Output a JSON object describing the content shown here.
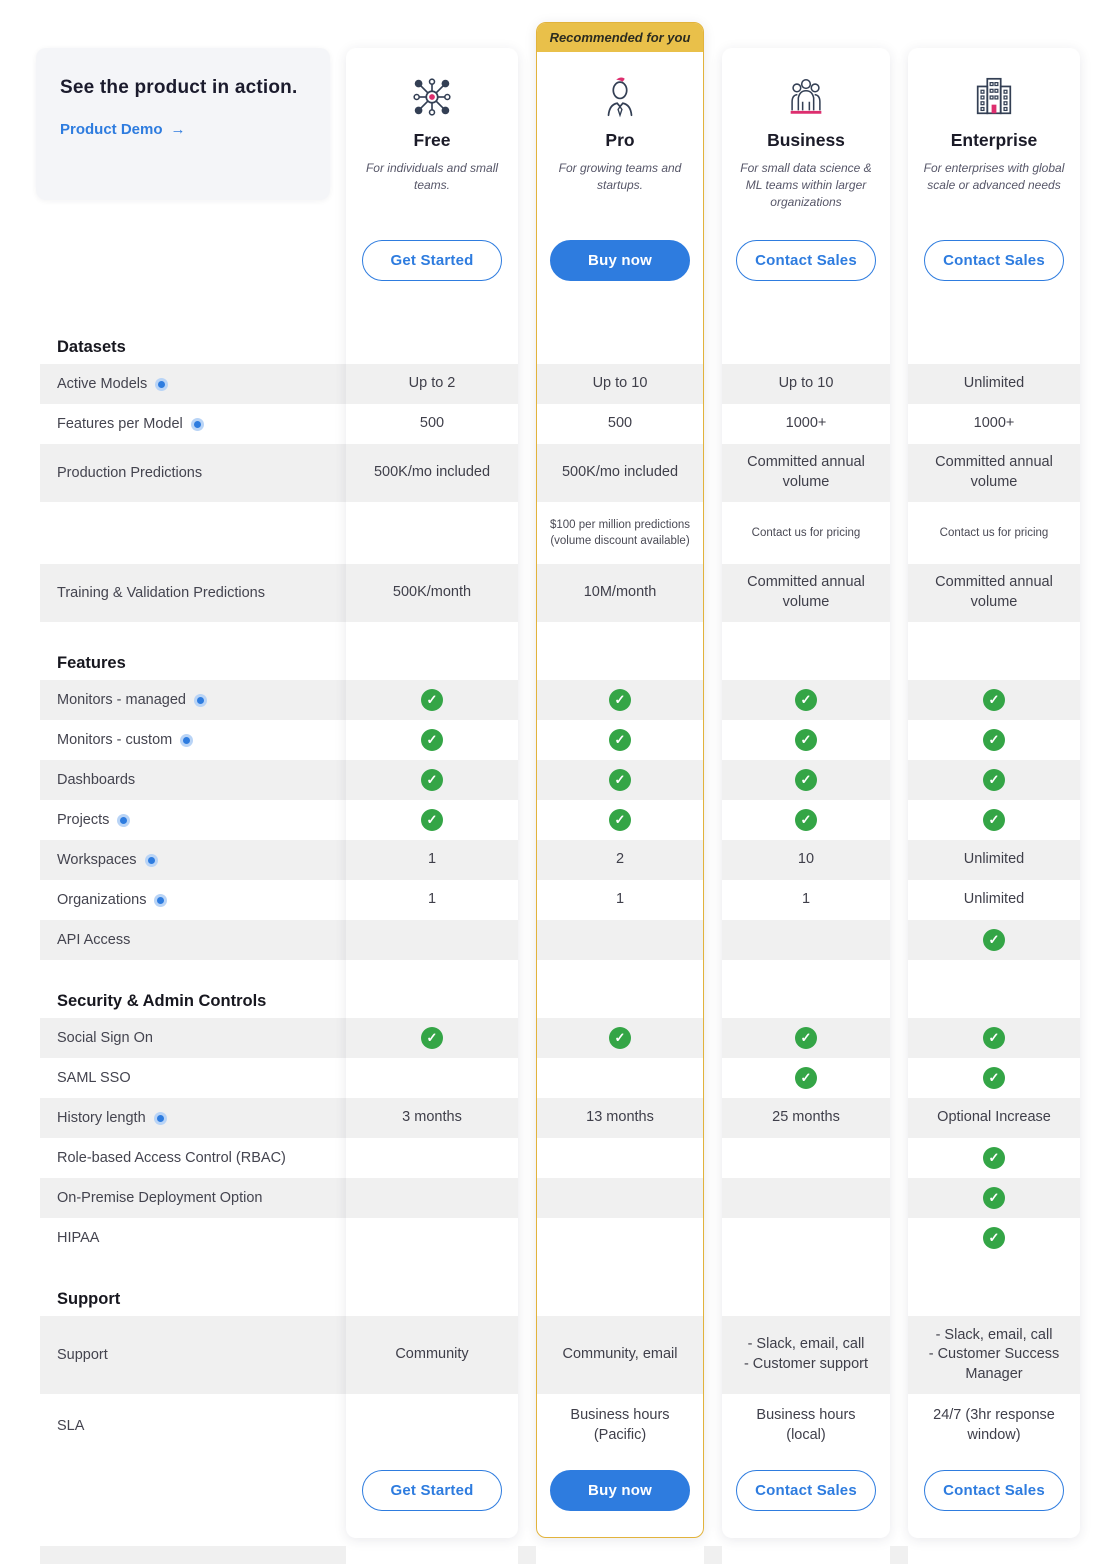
{
  "demo_card": {
    "title": "See the product in action.",
    "link_label": "Product Demo",
    "arrow": "→"
  },
  "badge": "Recommended for you",
  "plans": [
    {
      "name": "Free",
      "tagline": "For individuals and small teams.",
      "icon": "network-icon",
      "cta": "Get Started",
      "cta_style": "outline",
      "recommended": false
    },
    {
      "name": "Pro",
      "tagline": "For growing teams and startups.",
      "icon": "person-icon",
      "cta": "Buy now",
      "cta_style": "filled",
      "recommended": true
    },
    {
      "name": "Business",
      "tagline": "For small data science & ML teams within larger organizations",
      "icon": "people-group-icon",
      "cta": "Contact Sales",
      "cta_style": "outline",
      "recommended": false
    },
    {
      "name": "Enterprise",
      "tagline": "For enterprises with global scale or advanced needs",
      "icon": "buildings-icon",
      "cta": "Contact Sales",
      "cta_style": "outline",
      "recommended": false
    }
  ],
  "sections": [
    {
      "heading": "Datasets",
      "rows": [
        {
          "label": "Active Models",
          "info": true,
          "shade": true,
          "size": "normal",
          "cells": [
            "Up to 2",
            "Up to 10",
            "Up to 10",
            "Unlimited"
          ]
        },
        {
          "label": "Features per Model",
          "info": true,
          "shade": false,
          "size": "normal",
          "cells": [
            "500",
            "500",
            "1000+",
            "1000+"
          ]
        },
        {
          "label": "Production Predictions",
          "info": false,
          "shade": true,
          "size": "tall",
          "cells": [
            "500K/mo included",
            "500K/mo included",
            "Committed annual volume",
            "Committed annual volume"
          ]
        },
        {
          "label": "",
          "info": false,
          "shade": false,
          "size": "sub",
          "cells": [
            "",
            "$100 per million predictions (volume discount available)",
            "Contact us for pricing",
            "Contact us for pricing"
          ]
        },
        {
          "label": "Training & Validation Predictions",
          "info": false,
          "shade": true,
          "size": "tall",
          "cells": [
            "500K/month",
            "10M/month",
            "Committed annual volume",
            "Committed annual volume"
          ]
        }
      ]
    },
    {
      "heading": "Features",
      "rows": [
        {
          "label": "Monitors - managed",
          "info": true,
          "shade": true,
          "size": "normal",
          "cells": [
            "check",
            "check",
            "check",
            "check"
          ]
        },
        {
          "label": "Monitors - custom",
          "info": true,
          "shade": false,
          "size": "normal",
          "cells": [
            "check",
            "check",
            "check",
            "check"
          ]
        },
        {
          "label": "Dashboards",
          "info": false,
          "shade": true,
          "size": "normal",
          "cells": [
            "check",
            "check",
            "check",
            "check"
          ]
        },
        {
          "label": "Projects",
          "info": true,
          "shade": false,
          "size": "normal",
          "cells": [
            "check",
            "check",
            "check",
            "check"
          ]
        },
        {
          "label": "Workspaces",
          "info": true,
          "shade": true,
          "size": "normal",
          "cells": [
            "1",
            "2",
            "10",
            "Unlimited"
          ]
        },
        {
          "label": "Organizations",
          "info": true,
          "shade": false,
          "size": "normal",
          "cells": [
            "1",
            "1",
            "1",
            "Unlimited"
          ]
        },
        {
          "label": "API Access",
          "info": false,
          "shade": true,
          "size": "normal",
          "cells": [
            "",
            "",
            "",
            "check"
          ]
        }
      ]
    },
    {
      "heading": "Security & Admin Controls",
      "rows": [
        {
          "label": "Social Sign On",
          "info": false,
          "shade": true,
          "size": "normal",
          "cells": [
            "check",
            "check",
            "check",
            "check"
          ]
        },
        {
          "label": "SAML SSO",
          "info": false,
          "shade": false,
          "size": "normal",
          "cells": [
            "",
            "",
            "check",
            "check"
          ]
        },
        {
          "label": "History length",
          "info": true,
          "shade": true,
          "size": "normal",
          "cells": [
            "3 months",
            "13 months",
            "25 months",
            "Optional Increase"
          ]
        },
        {
          "label": "Role-based Access Control (RBAC)",
          "info": false,
          "shade": false,
          "size": "normal",
          "cells": [
            "",
            "",
            "",
            "check"
          ]
        },
        {
          "label": "On-Premise Deployment Option",
          "info": false,
          "shade": true,
          "size": "normal",
          "cells": [
            "",
            "",
            "",
            "check"
          ]
        },
        {
          "label": "HIPAA",
          "info": false,
          "shade": false,
          "size": "normal",
          "cells": [
            "",
            "",
            "",
            "check"
          ]
        }
      ]
    },
    {
      "heading": "Support",
      "rows": [
        {
          "label": "Support",
          "info": false,
          "shade": true,
          "size": "xtall",
          "cells": [
            "Community",
            "Community, email",
            "- Slack, email, call\n- Customer support",
            "- Slack, email, call\n- Customer Success Manager"
          ]
        },
        {
          "label": "SLA",
          "info": false,
          "shade": false,
          "size": "tall2",
          "cells": [
            "",
            "Business hours (Pacific)",
            "Business hours (local)",
            "24/7 (3hr response window)"
          ]
        }
      ]
    }
  ],
  "icons": {
    "check_glyph": "✓"
  },
  "colors": {
    "accent_blue": "#2E7CDF",
    "check_green": "#34A546",
    "badge_yellow": "#E9C04A",
    "border_yellow": "#E2B33C",
    "icon_navy": "#333F54",
    "icon_pink": "#DD2E6E",
    "row_stripe": "#F0F0F0",
    "text": "#3F3F4A",
    "heading": "#17171F",
    "demo_card_bg": "#F4F5F8"
  }
}
